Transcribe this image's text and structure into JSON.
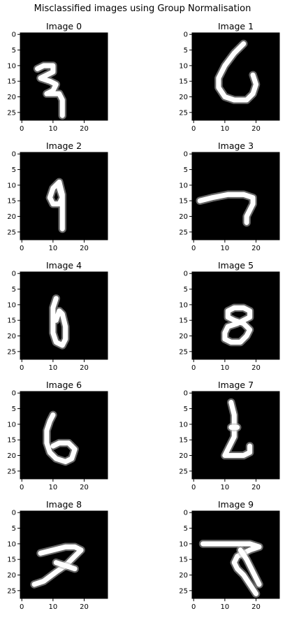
{
  "figure": {
    "title": "Misclassified images using Group Normalisation"
  },
  "colors": {
    "background": "#000000",
    "stroke": "#ffffff",
    "axis": "#000000"
  },
  "chart_data": {
    "type": "image-grid",
    "title": "Misclassified images using Group Normalisation",
    "rows": 5,
    "cols": 2,
    "image_size": [
      28,
      28
    ],
    "xticks": [
      0,
      10,
      20
    ],
    "yticks": [
      0,
      5,
      10,
      15,
      20,
      25
    ],
    "xlim": [
      -0.5,
      27.5
    ],
    "ylim": [
      27.5,
      -0.5
    ],
    "panels": [
      {
        "title": "Image 0",
        "strokes": [
          [
            [
              5,
              11
            ],
            [
              7,
              10
            ],
            [
              10,
              10
            ],
            [
              10,
              12
            ],
            [
              8,
              13
            ],
            [
              6,
              14
            ],
            [
              9,
              15
            ],
            [
              11,
              16
            ],
            [
              10,
              18
            ],
            [
              8,
              19
            ],
            [
              12,
              19
            ],
            [
              13,
              21
            ],
            [
              13,
              24
            ],
            [
              13,
              26
            ]
          ]
        ]
      },
      {
        "title": "Image 1",
        "strokes": [
          [
            [
              16,
              3
            ],
            [
              13,
              6
            ],
            [
              10,
              10
            ],
            [
              8,
              14
            ],
            [
              8,
              17
            ],
            [
              10,
              20
            ],
            [
              13,
              21
            ],
            [
              17,
              21
            ],
            [
              19,
              19
            ],
            [
              20,
              16
            ],
            [
              19,
              13
            ]
          ]
        ]
      },
      {
        "title": "Image 2",
        "strokes": [
          [
            [
              12,
              9
            ],
            [
              10,
              11
            ],
            [
              9,
              14
            ],
            [
              10,
              16
            ],
            [
              12,
              16
            ],
            [
              13,
              14
            ],
            [
              12,
              11
            ],
            [
              12,
              9
            ],
            [
              13,
              13
            ],
            [
              13,
              17
            ],
            [
              13,
              21
            ],
            [
              13,
              24
            ]
          ]
        ]
      },
      {
        "title": "Image 3",
        "strokes": [
          [
            [
              2,
              15
            ],
            [
              6,
              14
            ],
            [
              11,
              13
            ],
            [
              16,
              13
            ],
            [
              19,
              14
            ],
            [
              19,
              16
            ],
            [
              18,
              18
            ],
            [
              17,
              20
            ],
            [
              17,
              22
            ]
          ]
        ]
      },
      {
        "title": "Image 4",
        "strokes": [
          [
            [
              11,
              8
            ],
            [
              10,
              11
            ],
            [
              10,
              15
            ],
            [
              10,
              19
            ],
            [
              11,
              22
            ],
            [
              13,
              23
            ],
            [
              14,
              21
            ],
            [
              14,
              17
            ],
            [
              13,
              13
            ],
            [
              12,
              12
            ],
            [
              11,
              15
            ]
          ]
        ]
      },
      {
        "title": "Image 5",
        "strokes": [
          [
            [
              11,
              12
            ],
            [
              13,
              11
            ],
            [
              16,
              11
            ],
            [
              18,
              12
            ],
            [
              18,
              14
            ],
            [
              16,
              15
            ],
            [
              14,
              16
            ],
            [
              11,
              17
            ],
            [
              10,
              19
            ],
            [
              10,
              21
            ],
            [
              12,
              22
            ],
            [
              15,
              22
            ],
            [
              17,
              20
            ],
            [
              18,
              18
            ],
            [
              16,
              16
            ],
            [
              13,
              15
            ],
            [
              11,
              14
            ],
            [
              11,
              12
            ]
          ]
        ]
      },
      {
        "title": "Image 6",
        "strokes": [
          [
            [
              10,
              7
            ],
            [
              9,
              9
            ],
            [
              8,
              12
            ],
            [
              8,
              16
            ],
            [
              9,
              19
            ],
            [
              11,
              21
            ],
            [
              14,
              22
            ],
            [
              16,
              21
            ],
            [
              17,
              18
            ],
            [
              15,
              16
            ],
            [
              12,
              16
            ],
            [
              10,
              17
            ]
          ]
        ]
      },
      {
        "title": "Image 7",
        "strokes": [
          [
            [
              12,
              3
            ],
            [
              13,
              7
            ],
            [
              13,
              11
            ],
            [
              13,
              14
            ],
            [
              12,
              16
            ],
            [
              11,
              18
            ],
            [
              10,
              20
            ],
            [
              13,
              20
            ],
            [
              16,
              20
            ],
            [
              18,
              19
            ],
            [
              18,
              17
            ]
          ],
          [
            [
              12,
              11
            ],
            [
              14,
              11
            ]
          ]
        ]
      },
      {
        "title": "Image 8",
        "strokes": [
          [
            [
              6,
              13
            ],
            [
              10,
              12
            ],
            [
              14,
              11
            ],
            [
              17,
              11
            ],
            [
              19,
              12
            ],
            [
              17,
              14
            ],
            [
              14,
              17
            ],
            [
              11,
              19
            ],
            [
              7,
              22
            ],
            [
              4,
              23
            ]
          ],
          [
            [
              11,
              16
            ],
            [
              14,
              17
            ],
            [
              17,
              18
            ]
          ]
        ]
      },
      {
        "title": "Image 9",
        "strokes": [
          [
            [
              3,
              10
            ],
            [
              8,
              10
            ],
            [
              13,
              10
            ],
            [
              18,
              10
            ],
            [
              21,
              11
            ],
            [
              18,
              12
            ],
            [
              14,
              14
            ],
            [
              13,
              16
            ],
            [
              14,
              18
            ],
            [
              16,
              20
            ],
            [
              18,
              23
            ],
            [
              20,
              26
            ]
          ],
          [
            [
              15,
              12
            ],
            [
              17,
              15
            ],
            [
              19,
              19
            ],
            [
              21,
              23
            ]
          ]
        ]
      }
    ]
  }
}
